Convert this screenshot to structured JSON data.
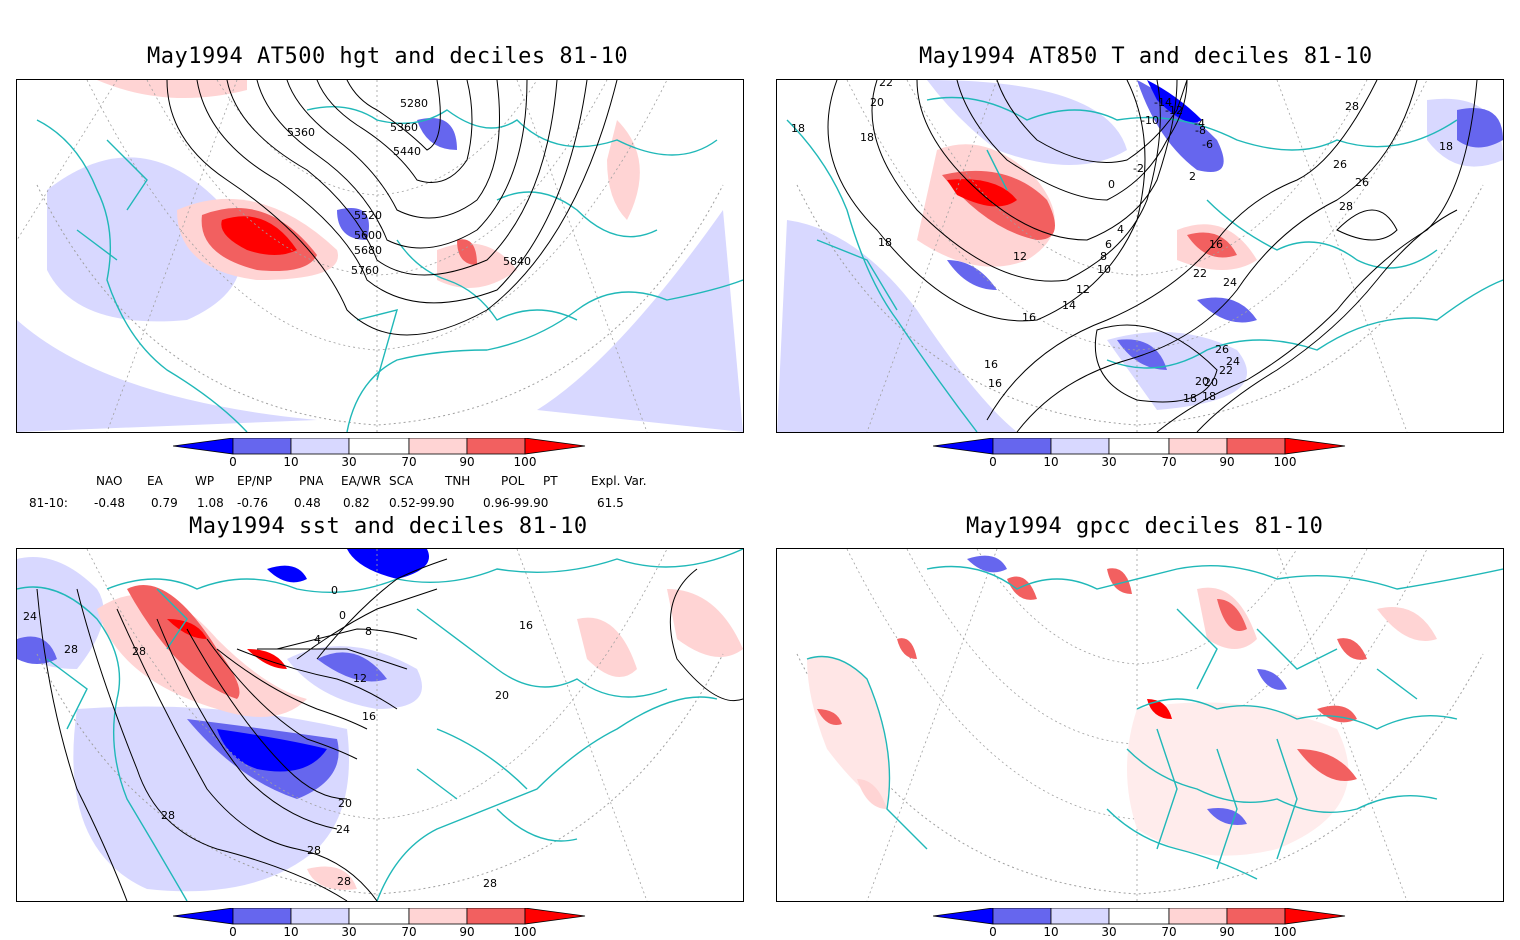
{
  "panels": [
    {
      "id": "p1",
      "title": "May1994 AT500 hgt and deciles 81-10",
      "contour_labels": [
        "5280",
        "5360",
        "5360",
        "5440",
        "5520",
        "5600",
        "5680",
        "5760",
        "5840"
      ]
    },
    {
      "id": "p2",
      "title": "May1994 AT850 T and deciles 81-10",
      "contour_labels": [
        "22",
        "20",
        "18",
        "18",
        "18",
        "-14",
        "-12",
        "-10",
        "-8",
        "-6",
        "-4",
        "-2",
        "0",
        "2",
        "4",
        "6",
        "8",
        "10",
        "12",
        "12",
        "14",
        "16",
        "16",
        "16",
        "18",
        "20",
        "22",
        "24",
        "26",
        "24",
        "22",
        "20",
        "18",
        "28",
        "26",
        "26",
        "28",
        "16",
        "18"
      ]
    },
    {
      "id": "p3",
      "title": "May1994 sst and deciles 81-10",
      "contour_labels": [
        "24",
        "28",
        "28",
        "0",
        "0",
        "4",
        "8",
        "12",
        "16",
        "20",
        "24",
        "28",
        "28",
        "16",
        "20",
        "28",
        "28"
      ]
    },
    {
      "id": "p4",
      "title": "May1994 gpcc deciles 81-10",
      "contour_labels": []
    }
  ],
  "colorbar": {
    "labels": [
      "0",
      "10",
      "30",
      "70",
      "90",
      "100"
    ],
    "colors": {
      "dark_blue": "#0000ff",
      "mid_blue": "#6666ee",
      "light_blue": "#d8d8ff",
      "white": "#ffffff",
      "light_red": "#ffd4d4",
      "mid_red": "#f26060",
      "dark_red": "#ff0000"
    }
  },
  "teleconnections": {
    "headers": [
      "NAO",
      "EA",
      "WP",
      "EP/NP",
      "PNA",
      "EA/WR",
      "SCA",
      "TNH",
      "POL",
      "PT",
      "Expl. Var."
    ],
    "row_label": "81-10:",
    "values": [
      "-0.48",
      "0.79",
      "1.08",
      "-0.76",
      "0.48",
      "0.82",
      "0.52-99.90",
      "0.96-99.90",
      "61.5"
    ]
  },
  "colors": {
    "coast": "#20b8b8",
    "contour": "#000000",
    "grid": "#a0a0a0"
  }
}
